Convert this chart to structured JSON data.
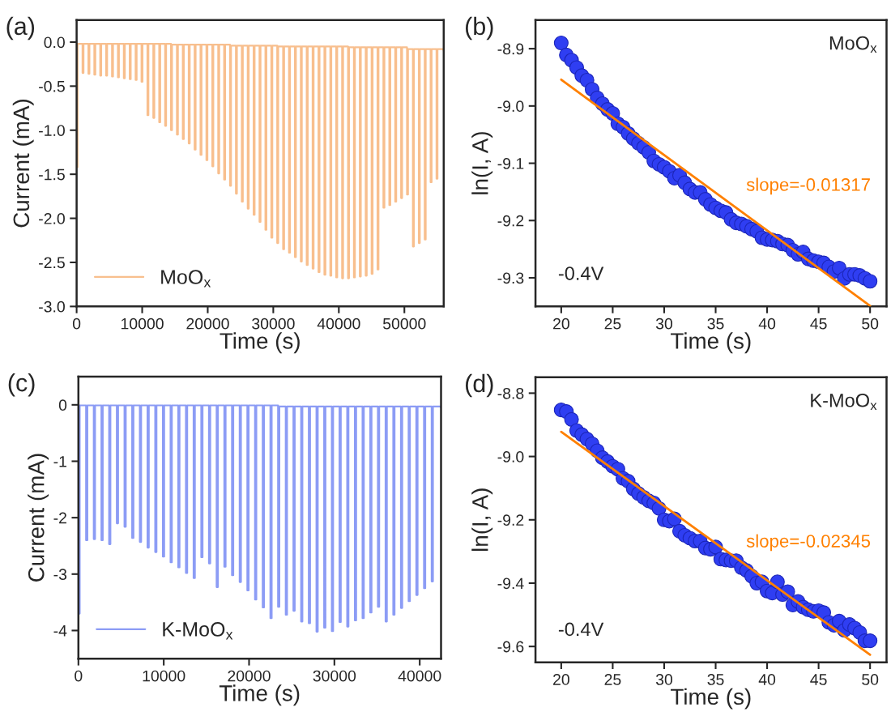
{
  "chart_data": [
    {
      "type": "step",
      "xlabel": "Time (s)",
      "ylabel": "Current (mA)",
      "annotations": [
        "(a)"
      ],
      "legend": "bottom left",
      "xlim": [
        0,
        56000
      ],
      "xticks": [
        0,
        10000,
        20000,
        30000,
        40000,
        50000
      ],
      "ylim": [
        -3.0,
        0.25
      ],
      "yticks": [
        {
          "value": 0,
          "label": "0.0"
        },
        -0.5,
        {
          "value": -1,
          "label": "-1.0"
        },
        -1.5,
        {
          "value": -2,
          "label": "-2.0"
        },
        -2.5,
        {
          "value": -3,
          "label": "-3.0"
        }
      ],
      "series": [
        {
          "name": "MoO$_{x}$",
          "color": "#f8bf8e",
          "x": [
            0,
            150,
            900,
            1050,
            1800,
            1950,
            2700,
            2850,
            3600,
            3750,
            4500,
            4650,
            5400,
            5550,
            6300,
            6450,
            7200,
            7350,
            8100,
            8250,
            9000,
            9150,
            9900,
            10050,
            10800,
            10950,
            11700,
            11850,
            12600,
            12750,
            13500,
            13650,
            14400,
            14550,
            15300,
            15450,
            16200,
            16350,
            17100,
            17250,
            18000,
            18150,
            18900,
            19050,
            19800,
            19950,
            20700,
            20850,
            21600,
            21750,
            22500,
            22650,
            23400,
            23550,
            24300,
            24450,
            25200,
            25350,
            26100,
            26250,
            27000,
            27150,
            27900,
            28050,
            28800,
            28950,
            29700,
            29850,
            30600,
            30750,
            31500,
            31650,
            32400,
            32550,
            33300,
            33450,
            34200,
            34350,
            35100,
            35250,
            36000,
            36150,
            36900,
            37050,
            37800,
            37950,
            38700,
            38850,
            39600,
            39750,
            40500,
            40650,
            41400,
            41550,
            42300,
            42450,
            43200,
            43350,
            44100,
            44250,
            45000,
            45150,
            45900,
            46050,
            46800,
            46950,
            47700,
            47850,
            48600,
            48750,
            49500,
            49650,
            50400,
            50550,
            51300,
            51450,
            52200,
            52350,
            53100,
            53250,
            54000,
            54150,
            54900,
            55050,
            56000
          ],
          "values": [
            -1.42,
            -0.02,
            -0.35,
            -0.02,
            -0.36,
            -0.02,
            -0.37,
            -0.02,
            -0.38,
            -0.02,
            -0.38,
            -0.02,
            -0.39,
            -0.02,
            -0.4,
            -0.02,
            -0.41,
            -0.02,
            -0.42,
            -0.02,
            -0.43,
            -0.02,
            -0.45,
            -0.02,
            -0.83,
            -0.02,
            -0.86,
            -0.02,
            -0.91,
            -0.02,
            -0.95,
            -0.02,
            -1.0,
            -0.03,
            -1.05,
            -0.03,
            -1.1,
            -0.03,
            -1.15,
            -0.03,
            -1.22,
            -0.03,
            -1.28,
            -0.03,
            -1.34,
            -0.03,
            -1.41,
            -0.03,
            -1.49,
            -0.03,
            -1.56,
            -0.03,
            -1.63,
            -0.04,
            -1.72,
            -0.04,
            -1.81,
            -0.04,
            -1.89,
            -0.04,
            -1.96,
            -0.04,
            -2.04,
            -0.04,
            -2.13,
            -0.04,
            -2.22,
            -0.04,
            -2.28,
            -0.05,
            -2.35,
            -0.05,
            -2.39,
            -0.05,
            -2.44,
            -0.05,
            -2.49,
            -0.05,
            -2.53,
            -0.05,
            -2.57,
            -0.05,
            -2.61,
            -0.05,
            -2.64,
            -0.05,
            -2.65,
            -0.05,
            -2.67,
            -0.05,
            -2.68,
            -0.05,
            -2.68,
            -0.06,
            -2.67,
            -0.06,
            -2.66,
            -0.06,
            -2.65,
            -0.06,
            -2.63,
            -0.06,
            -2.58,
            -0.06,
            -1.88,
            -0.06,
            -1.85,
            -0.06,
            -1.81,
            -0.06,
            -1.77,
            -0.06,
            -1.73,
            -0.08,
            -2.32,
            -0.08,
            -2.28,
            -0.08,
            -2.24,
            -0.08,
            -1.59,
            -0.08,
            -1.55,
            -0.08,
            -0.1
          ]
        }
      ]
    },
    {
      "type": "scatter",
      "xlabel": "Time (s)",
      "ylabel": "ln(I, A)",
      "annotations": [
        "(b)",
        "MoO$_{x}$",
        "-0.4V",
        "slope=-0.01317"
      ],
      "marker": "circle",
      "xlim": [
        17.5,
        51.6
      ],
      "xticks": [
        20,
        25,
        30,
        35,
        40,
        45,
        50
      ],
      "ylim": [
        -9.35,
        -8.85
      ],
      "yticks": [
        -8.9,
        {
          "value": -9.0,
          "label": "-9.0"
        },
        -9.1,
        -9.2,
        -9.3
      ],
      "series": [
        {
          "color": "#2f3ef2",
          "x": [
            20,
            20.5,
            21,
            21.5,
            22,
            22.5,
            23,
            23.5,
            24,
            24.5,
            25,
            25.5,
            26,
            26.5,
            27,
            27.5,
            28,
            28.5,
            29,
            29.5,
            30,
            30.5,
            31,
            31.5,
            32,
            32.5,
            33,
            33.5,
            34,
            34.5,
            35,
            35.5,
            36,
            36.5,
            37,
            37.5,
            38,
            38.5,
            39,
            39.5,
            40,
            40.5,
            41,
            41.5,
            42,
            42.5,
            43,
            43.5,
            44,
            44.5,
            45,
            45.5,
            46,
            46.5,
            47,
            47.5,
            48,
            48.5,
            49,
            49.5,
            50
          ],
          "values": [
            -8.89,
            -8.911,
            -8.92,
            -8.933,
            -8.947,
            -8.955,
            -8.971,
            -8.986,
            -8.996,
            -9.006,
            -9.013,
            -9.031,
            -9.037,
            -9.048,
            -9.057,
            -9.065,
            -9.072,
            -9.081,
            -9.096,
            -9.102,
            -9.107,
            -9.114,
            -9.126,
            -9.121,
            -9.134,
            -9.145,
            -9.151,
            -9.151,
            -9.163,
            -9.172,
            -9.178,
            -9.183,
            -9.186,
            -9.198,
            -9.204,
            -9.206,
            -9.21,
            -9.215,
            -9.219,
            -9.23,
            -9.233,
            -9.234,
            -9.236,
            -9.241,
            -9.243,
            -9.252,
            -9.259,
            -9.255,
            -9.267,
            -9.27,
            -9.272,
            -9.274,
            -9.281,
            -9.289,
            -9.283,
            -9.301,
            -9.294,
            -9.294,
            -9.296,
            -9.301,
            -9.306
          ]
        },
        {
          "type": "line",
          "marker": "none",
          "color": "#ff8000",
          "x": [
            20,
            50
          ],
          "values": [
            -8.954,
            -9.349
          ]
        }
      ]
    },
    {
      "type": "step",
      "xlabel": "Time (s)",
      "ylabel": "Current (mA)",
      "annotations": [
        "(c)"
      ],
      "legend": "bottom left",
      "xlim": [
        0,
        42500
      ],
      "xticks": [
        0,
        10000,
        20000,
        30000,
        40000
      ],
      "ylim": [
        -4.5,
        0.5
      ],
      "yticks": [
        0,
        -1,
        -2,
        -3,
        -4
      ],
      "series": [
        {
          "name": "K-MoO$_{x}$",
          "color": "#8c9cf5",
          "x": [
            0,
            150,
            900,
            1050,
            1800,
            1950,
            2700,
            2850,
            3600,
            3750,
            4500,
            4650,
            5400,
            5550,
            6300,
            6450,
            7200,
            7350,
            8100,
            8250,
            9000,
            9150,
            9900,
            10050,
            10800,
            10950,
            11700,
            11850,
            12600,
            12750,
            13500,
            13650,
            14400,
            14550,
            15300,
            15450,
            16200,
            16350,
            17100,
            17250,
            18000,
            18150,
            18900,
            19050,
            19800,
            19950,
            20700,
            20850,
            21600,
            21750,
            22500,
            22650,
            23400,
            23550,
            24300,
            24450,
            25200,
            25350,
            26100,
            26250,
            27000,
            27150,
            27900,
            28050,
            28800,
            28950,
            29700,
            29850,
            30600,
            30750,
            31500,
            31650,
            32400,
            32550,
            33300,
            33450,
            34200,
            34350,
            35100,
            35250,
            36000,
            36150,
            36900,
            37050,
            37800,
            37950,
            38700,
            38850,
            39600,
            39750,
            40500,
            40650,
            41400,
            41550,
            42500
          ],
          "values": [
            -3.7,
            -0.01,
            -2.4,
            -0.01,
            -2.38,
            -0.01,
            -2.4,
            -0.01,
            -2.47,
            -0.01,
            -2.1,
            -0.01,
            -2.16,
            -0.01,
            -2.36,
            -0.01,
            -2.43,
            -0.01,
            -2.53,
            -0.01,
            -2.61,
            -0.01,
            -2.69,
            -0.01,
            -2.79,
            -0.01,
            -2.88,
            -0.01,
            -2.98,
            -0.01,
            -3.07,
            -0.01,
            -2.7,
            -0.01,
            -2.81,
            -0.01,
            -3.23,
            -0.01,
            -2.87,
            -0.01,
            -3.02,
            -0.01,
            -3.14,
            -0.01,
            -3.29,
            -0.01,
            -3.45,
            -0.01,
            -3.59,
            -0.01,
            -3.78,
            -0.01,
            -3.58,
            -0.03,
            -3.72,
            -0.03,
            -3.65,
            -0.03,
            -3.84,
            -0.03,
            -3.87,
            -0.03,
            -4.02,
            -0.03,
            -3.95,
            -0.03,
            -4.01,
            -0.03,
            -3.85,
            -0.03,
            -3.93,
            -0.03,
            -3.82,
            -0.03,
            -3.78,
            -0.03,
            -3.68,
            -0.03,
            -3.58,
            -0.03,
            -3.84,
            -0.03,
            -3.72,
            -0.03,
            -3.6,
            -0.03,
            -3.48,
            -0.03,
            -3.37,
            -0.03,
            -3.25,
            -0.03,
            -3.13,
            -0.03,
            -0.05
          ]
        }
      ]
    },
    {
      "type": "scatter",
      "xlabel": "Time (s)",
      "ylabel": "ln(I, A)",
      "annotations": [
        "(d)",
        "K-MoO$_{x}$",
        "-0.4V",
        "slope=-0.02345"
      ],
      "marker": "circle",
      "xlim": [
        17.5,
        51.6
      ],
      "xticks": [
        20,
        25,
        30,
        35,
        40,
        45,
        50
      ],
      "ylim": [
        -9.65,
        -8.75
      ],
      "yticks": [
        -8.8,
        {
          "value": -9.0,
          "label": "-9.0"
        },
        -9.2,
        -9.4,
        -9.6
      ],
      "series": [
        {
          "color": "#2f3ef2",
          "x": [
            20,
            20.5,
            21,
            21.5,
            22,
            22.5,
            23,
            23.5,
            24,
            24.5,
            25,
            25.5,
            26,
            26.5,
            27,
            27.5,
            28,
            28.5,
            29,
            29.5,
            30,
            30.5,
            31,
            31.5,
            32,
            32.5,
            33,
            33.5,
            34,
            34.5,
            35,
            35.5,
            36,
            36.5,
            37,
            37.5,
            38,
            38.5,
            39,
            39.5,
            40,
            40.5,
            41,
            41.5,
            42,
            42.5,
            43,
            43.5,
            44,
            44.5,
            45,
            45.5,
            46,
            46.5,
            47,
            47.5,
            48,
            48.5,
            49,
            49.5,
            50
          ],
          "values": [
            -8.853,
            -8.858,
            -8.883,
            -8.918,
            -8.931,
            -8.945,
            -8.96,
            -8.982,
            -9.004,
            -9.016,
            -9.031,
            -9.04,
            -9.069,
            -9.078,
            -9.102,
            -9.117,
            -9.129,
            -9.14,
            -9.147,
            -9.164,
            -9.2,
            -9.204,
            -9.197,
            -9.236,
            -9.249,
            -9.258,
            -9.267,
            -9.267,
            -9.289,
            -9.293,
            -9.286,
            -9.324,
            -9.327,
            -9.329,
            -9.329,
            -9.351,
            -9.36,
            -9.378,
            -9.4,
            -9.396,
            -9.425,
            -9.431,
            -9.396,
            -9.436,
            -9.427,
            -9.469,
            -9.458,
            -9.476,
            -9.484,
            -9.489,
            -9.487,
            -9.493,
            -9.524,
            -9.533,
            -9.52,
            -9.549,
            -9.531,
            -9.542,
            -9.556,
            -9.582,
            -9.582
          ]
        },
        {
          "type": "line",
          "marker": "none",
          "color": "#ff8000",
          "x": [
            20,
            50
          ],
          "values": [
            -8.922,
            -9.626
          ]
        }
      ]
    }
  ]
}
